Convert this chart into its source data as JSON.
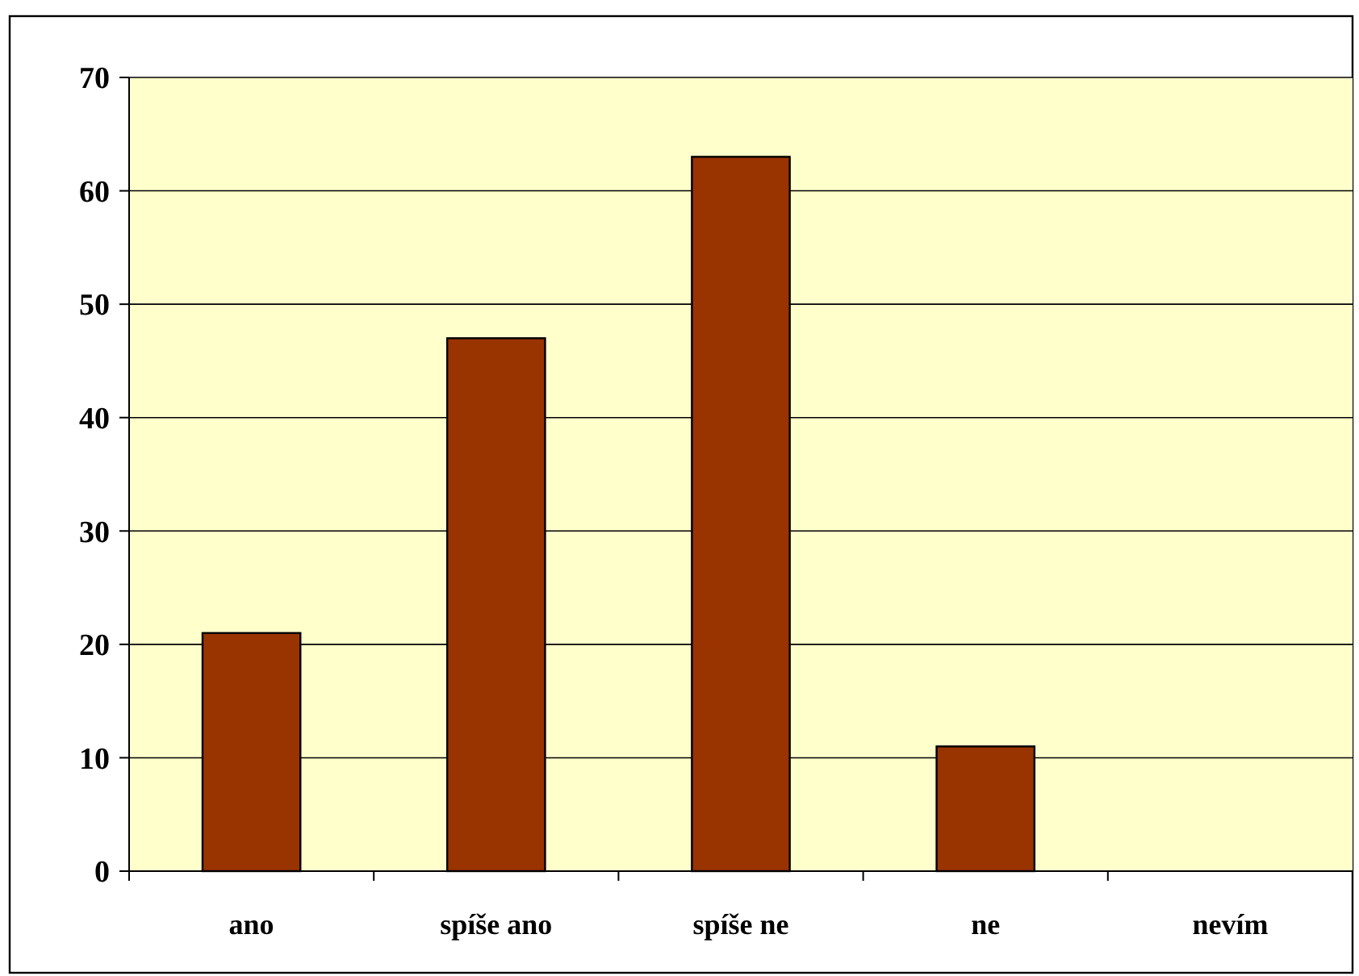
{
  "chart_data": {
    "type": "bar",
    "categories": [
      "ano",
      "spíše ano",
      "spíše ne",
      "ne",
      "nevím"
    ],
    "values": [
      21,
      47,
      63,
      11,
      0
    ],
    "color": "#993300",
    "ylim": [
      0,
      70
    ],
    "yticks": [
      0,
      10,
      20,
      30,
      40,
      50,
      60,
      70
    ],
    "grid": "y"
  }
}
